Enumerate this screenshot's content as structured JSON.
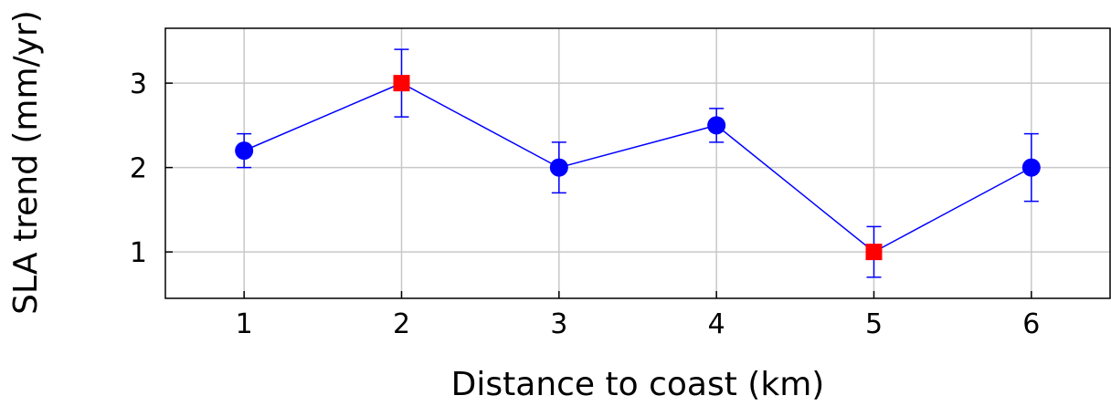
{
  "chart_data": {
    "type": "scatter",
    "xlabel": "Distance to coast (km)",
    "ylabel": "SLA trend (mm/yr)",
    "xlim": [
      0.5,
      6.5
    ],
    "ylim": [
      0.45,
      3.65
    ],
    "xticks": [
      1,
      2,
      3,
      4,
      5,
      6
    ],
    "yticks": [
      1,
      2,
      3
    ],
    "x_tick_labels": [
      "1",
      "2",
      "3",
      "4",
      "5",
      "6"
    ],
    "y_tick_labels": [
      "1",
      "2",
      "3"
    ],
    "grid": true,
    "line_color": "#0000ff",
    "points": [
      {
        "x": 1,
        "y": 2.2,
        "err": 0.2,
        "marker": "circle",
        "color": "#0000ff"
      },
      {
        "x": 2,
        "y": 3.0,
        "err": 0.4,
        "marker": "square",
        "color": "#ff0000"
      },
      {
        "x": 3,
        "y": 2.0,
        "err": 0.3,
        "marker": "circle",
        "color": "#0000ff"
      },
      {
        "x": 4,
        "y": 2.5,
        "err": 0.2,
        "marker": "circle",
        "color": "#0000ff"
      },
      {
        "x": 5,
        "y": 1.0,
        "err": 0.3,
        "marker": "square",
        "color": "#ff0000"
      },
      {
        "x": 6,
        "y": 2.0,
        "err": 0.4,
        "marker": "circle",
        "color": "#0000ff"
      }
    ]
  }
}
